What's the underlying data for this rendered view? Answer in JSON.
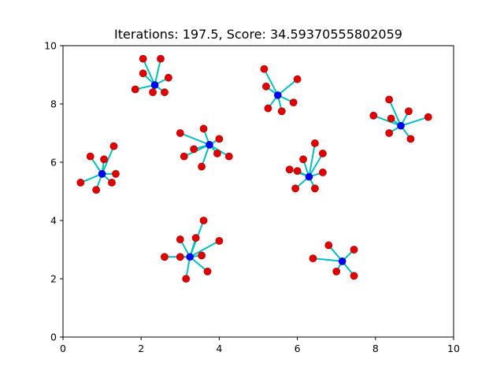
{
  "chart_data": {
    "type": "scatter",
    "title": "Iterations: 197.5, Score: 34.59370555802059",
    "xlabel": "",
    "ylabel": "",
    "xlim": [
      0,
      10
    ],
    "ylim": [
      0,
      10
    ],
    "xticks": [
      0,
      2,
      4,
      6,
      8,
      10
    ],
    "yticks": [
      0,
      2,
      4,
      6,
      8,
      10
    ],
    "grid": false,
    "colors": {
      "point": "#e00000",
      "point_edge": "#b00000",
      "center": "#0000ff",
      "link": "#00bfbf"
    },
    "clusters": [
      {
        "center": [
          2.35,
          8.65
        ],
        "points": [
          [
            2.05,
            9.55
          ],
          [
            2.5,
            9.55
          ],
          [
            2.05,
            9.05
          ],
          [
            2.7,
            8.9
          ],
          [
            1.85,
            8.5
          ],
          [
            2.3,
            8.4
          ],
          [
            2.6,
            8.4
          ]
        ]
      },
      {
        "center": [
          5.5,
          8.3
        ],
        "points": [
          [
            5.15,
            9.2
          ],
          [
            6.0,
            8.85
          ],
          [
            5.2,
            8.6
          ],
          [
            5.9,
            8.05
          ],
          [
            5.25,
            7.85
          ],
          [
            5.6,
            7.75
          ]
        ]
      },
      {
        "center": [
          8.65,
          7.25
        ],
        "points": [
          [
            8.35,
            8.15
          ],
          [
            8.85,
            7.75
          ],
          [
            7.95,
            7.6
          ],
          [
            8.4,
            7.5
          ],
          [
            9.35,
            7.55
          ],
          [
            8.35,
            7.0
          ],
          [
            8.9,
            6.8
          ]
        ]
      },
      {
        "center": [
          3.75,
          6.6
        ],
        "points": [
          [
            3.6,
            7.15
          ],
          [
            3.0,
            7.0
          ],
          [
            4.0,
            6.8
          ],
          [
            3.35,
            6.45
          ],
          [
            3.95,
            6.3
          ],
          [
            3.1,
            6.2
          ],
          [
            4.25,
            6.2
          ],
          [
            3.55,
            5.85
          ]
        ]
      },
      {
        "center": [
          1.0,
          5.6
        ],
        "points": [
          [
            1.3,
            6.55
          ],
          [
            0.7,
            6.2
          ],
          [
            1.05,
            6.1
          ],
          [
            1.35,
            5.6
          ],
          [
            1.25,
            5.3
          ],
          [
            0.45,
            5.3
          ],
          [
            0.85,
            5.05
          ]
        ]
      },
      {
        "center": [
          6.3,
          5.5
        ],
        "points": [
          [
            6.45,
            6.65
          ],
          [
            6.65,
            6.3
          ],
          [
            6.15,
            6.1
          ],
          [
            5.8,
            5.75
          ],
          [
            6.0,
            5.7
          ],
          [
            6.65,
            5.65
          ],
          [
            5.95,
            5.1
          ],
          [
            6.45,
            5.1
          ]
        ]
      },
      {
        "center": [
          3.25,
          2.75
        ],
        "points": [
          [
            3.6,
            4.0
          ],
          [
            3.0,
            3.35
          ],
          [
            3.4,
            3.4
          ],
          [
            4.0,
            3.3
          ],
          [
            2.6,
            2.75
          ],
          [
            3.0,
            2.75
          ],
          [
            3.55,
            2.8
          ],
          [
            3.7,
            2.25
          ],
          [
            3.15,
            2.0
          ]
        ]
      },
      {
        "center": [
          7.15,
          2.6
        ],
        "points": [
          [
            6.8,
            3.15
          ],
          [
            7.45,
            3.0
          ],
          [
            6.4,
            2.7
          ],
          [
            7.0,
            2.25
          ],
          [
            7.45,
            2.1
          ]
        ]
      }
    ]
  }
}
